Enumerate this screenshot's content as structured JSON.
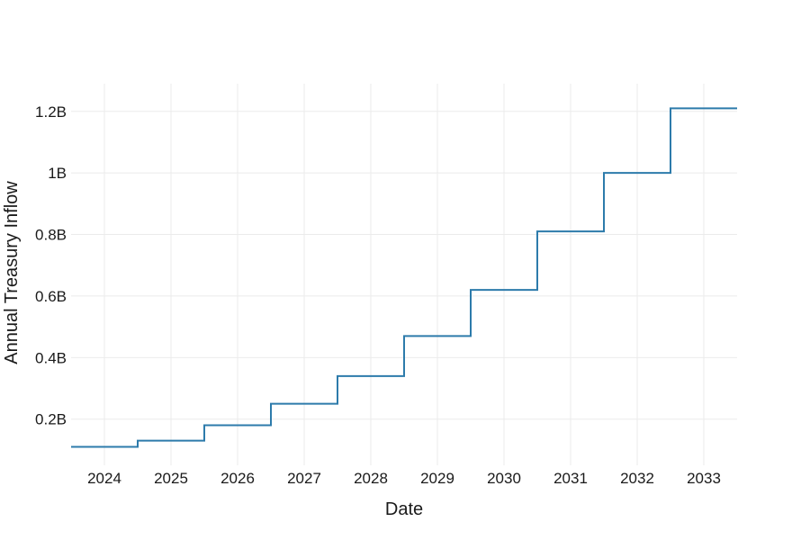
{
  "chart_data": {
    "type": "line",
    "step_shape": "hv",
    "title": "",
    "xlabel": "Date",
    "ylabel": "Annual Treasury Inflow",
    "series": [
      {
        "name": "Annual Treasury Inflow",
        "x": [
          2023.5,
          2024.5,
          2025.5,
          2026.5,
          2027.5,
          2028.5,
          2029.5,
          2030.5,
          2031.5,
          2032.5
        ],
        "values": [
          0.11,
          0.13,
          0.18,
          0.25,
          0.34,
          0.47,
          0.62,
          0.81,
          1.0,
          1.21
        ],
        "x_end": 2033.5,
        "color": "#2d7bab",
        "line_width": 2
      }
    ],
    "x_ticks": [
      {
        "value": 2024,
        "label": "2024"
      },
      {
        "value": 2025,
        "label": "2025"
      },
      {
        "value": 2026,
        "label": "2026"
      },
      {
        "value": 2027,
        "label": "2027"
      },
      {
        "value": 2028,
        "label": "2028"
      },
      {
        "value": 2029,
        "label": "2029"
      },
      {
        "value": 2030,
        "label": "2030"
      },
      {
        "value": 2031,
        "label": "2031"
      },
      {
        "value": 2032,
        "label": "2032"
      },
      {
        "value": 2033,
        "label": "2033"
      }
    ],
    "y_ticks": [
      {
        "value": 0.2,
        "label": "0.2B"
      },
      {
        "value": 0.4,
        "label": "0.4B"
      },
      {
        "value": 0.6,
        "label": "0.6B"
      },
      {
        "value": 0.8,
        "label": "0.8B"
      },
      {
        "value": 1.0,
        "label": "1B"
      },
      {
        "value": 1.2,
        "label": "1.2B"
      }
    ],
    "x_range": [
      2023.5,
      2033.5
    ],
    "y_range": [
      0.05,
      1.29
    ],
    "grid": true,
    "legend": "none",
    "grid_color": "#ebebeb",
    "background": "#ffffff",
    "text_color": "#1a1a1a"
  }
}
